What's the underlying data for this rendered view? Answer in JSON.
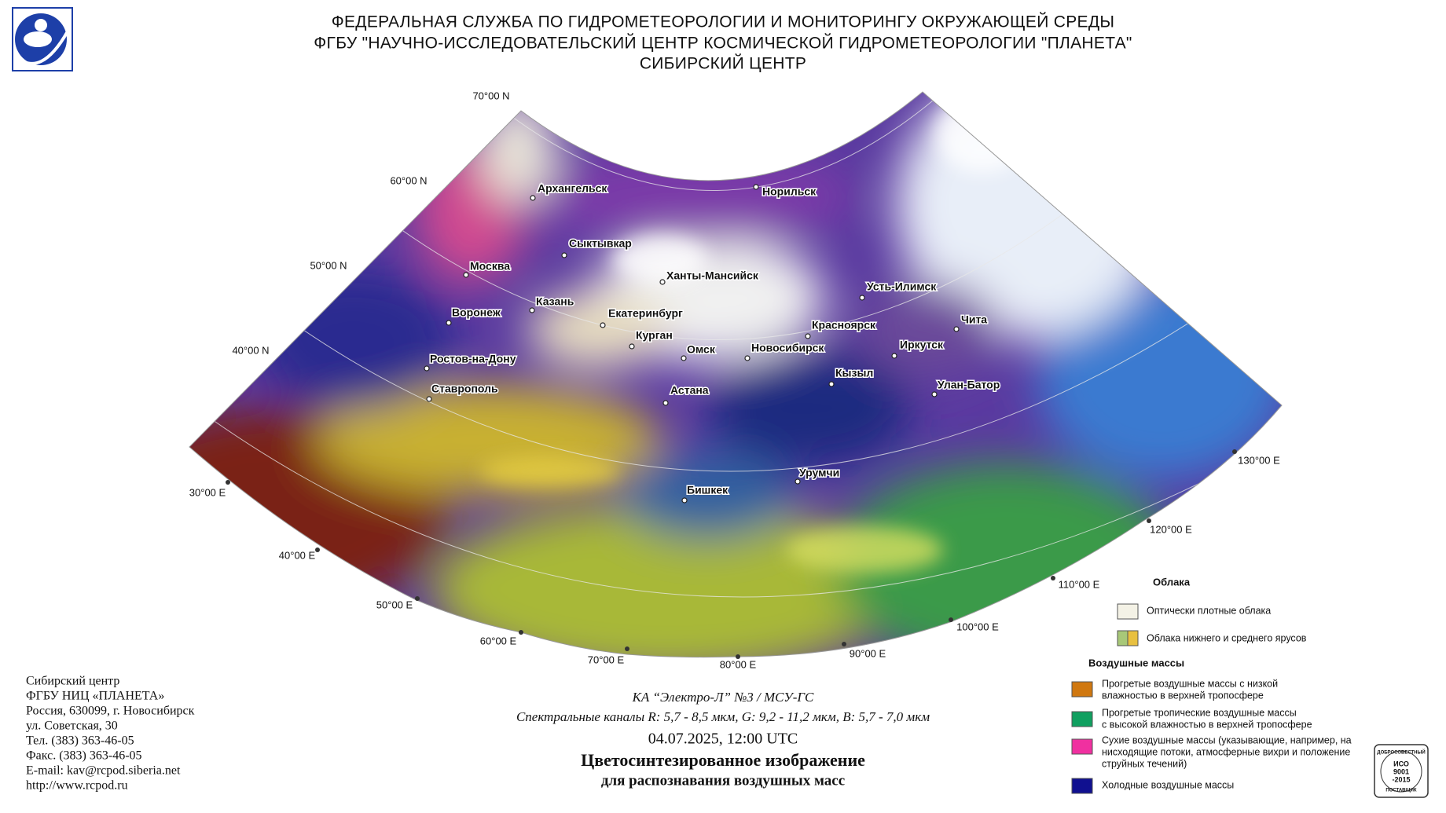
{
  "header": {
    "lines": [
      "ФЕДЕРАЛЬНАЯ СЛУЖБА ПО ГИДРОМЕТЕОРОЛОГИИ И МОНИТОРИНГУ ОКРУЖАЮЩЕЙ СРЕДЫ",
      "ФГБУ \"НАУЧНО-ИССЛЕДОВАТЕЛЬСКИЙ ЦЕНТР КОСМИЧЕСКОЙ ГИДРОМЕТЕОРОЛОГИИ \"ПЛАНЕТА\"",
      "СИБИРСКИЙ ЦЕНТР"
    ]
  },
  "map": {
    "latitude_labels": [
      "70°00 N",
      "60°00 N",
      "50°00 N",
      "40°00 N"
    ],
    "longitude_labels": [
      "30°00 E",
      "40°00 E",
      "50°00 E",
      "60°00 E",
      "70°00 E",
      "80°00 E",
      "90°00 E",
      "100°00 E",
      "110°00 E",
      "120°00 E",
      "130°00 E"
    ],
    "cities": [
      "Архангельск",
      "Норильск",
      "Сыктывкар",
      "Москва",
      "Ханты-Мансийск",
      "Усть-Илимск",
      "Казань",
      "Воронеж",
      "Екатеринбург",
      "Красноярск",
      "Чита",
      "Курган",
      "Омск",
      "Новосибирск",
      "Иркутск",
      "Ростов-на-Дону",
      "Кызыл",
      "Улан-Батор",
      "Ставрополь",
      "Астана",
      "Урумчи",
      "Бишкек"
    ]
  },
  "legend": {
    "clouds": {
      "title": "Облака",
      "items": [
        {
          "lines": [
            "Оптически плотные облака"
          ]
        },
        {
          "lines": [
            "Облака нижнего и среднего ярусов"
          ]
        }
      ]
    },
    "air_masses": {
      "title": "Воздушные массы",
      "items": [
        {
          "lines": [
            "Прогретые воздушные массы с низкой",
            "влажностью в верхней тропосфере"
          ]
        },
        {
          "lines": [
            "Прогретые тропические воздушные массы",
            "с высокой влажностью в верхней тропосфере"
          ]
        },
        {
          "lines": [
            "Сухие воздушные массы (указывающие, например, на",
            "нисходящие потоки, атмосферные вихри и положение",
            "струйных течений)"
          ]
        },
        {
          "lines": [
            "Холодные воздушные массы"
          ]
        }
      ]
    }
  },
  "address": {
    "lines": [
      "Сибирский центр",
      "ФГБУ НИЦ «ПЛАНЕТА»",
      "Россия, 630099, г. Новосибирск",
      "ул. Советская, 30",
      "Тел. (383) 363-46-05",
      "Факс. (383) 363-46-05",
      "E-mail: kav@rcpod.siberia.net",
      "http://www.rcpod.ru"
    ]
  },
  "caption": {
    "satellite": "КА “Электро-Л” №3 / МСУ-ГС",
    "channels": "Спектральные каналы R: 5,7 - 8,5 мкм, G: 9,2 - 11,2 мкм, B: 5,7 - 7,0 мкм",
    "datetime": "04.07.2025, 12:00 UTC",
    "title": "Цветосинтезированное изображение",
    "subtitle": "для распознавания воздушных масс"
  },
  "badge": {
    "lines": [
      "ДОБРОСОВЕСТНЫЙ",
      "ИСО",
      "9001",
      "-2015",
      "ПОСТАВЩИК"
    ]
  }
}
